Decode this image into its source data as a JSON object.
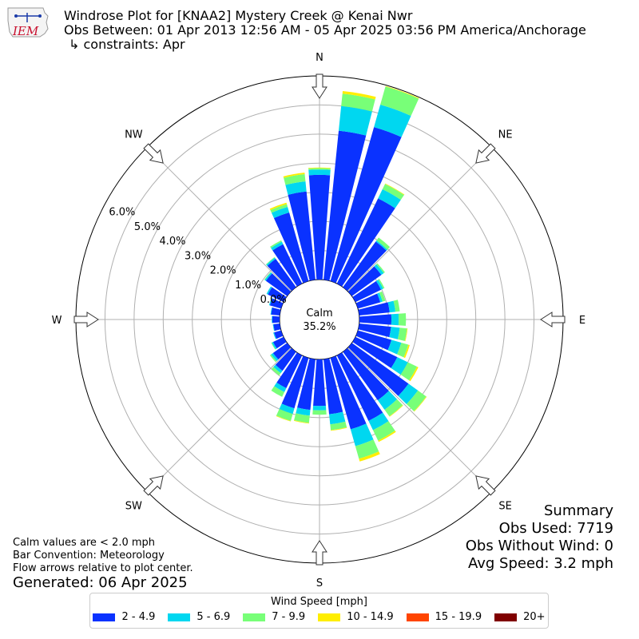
{
  "logo": {
    "text": "IEM",
    "color": "#c8102e"
  },
  "header": {
    "line1": "Windrose Plot for [KNAA2] Mystery Creek @ Kenai Nwr",
    "line2": "Obs Between: 01 Apr 2013 12:56 AM - 05 Apr 2025 03:56 PM America/Anchorage",
    "line3": "↳ constraints: Apr"
  },
  "summary": {
    "title": "Summary",
    "obs_used": "Obs Used: 7719",
    "obs_without_wind": "Obs Without Wind: 0",
    "avg_speed": "Avg Speed: 3.2 mph"
  },
  "notes": {
    "calm": "Calm values are < 2.0 mph",
    "convention": "Bar Convention: Meteorology",
    "flow": "Flow arrows relative to plot center."
  },
  "generated": "Generated: 06 Apr 2025",
  "chart_data": {
    "type": "windrose",
    "title": "Windrose Plot for [KNAA2] Mystery Creek @ Kenai Nwr",
    "calm_label": "Calm",
    "calm_value": "35.2%",
    "directions": [
      "N",
      "NE",
      "E",
      "SE",
      "S",
      "SW",
      "W",
      "NW"
    ],
    "radial_ticks": [
      "0.0%",
      "1.0%",
      "2.0%",
      "3.0%",
      "4.0%",
      "5.0%",
      "6.0%"
    ],
    "radial_max": 7.0,
    "legend_title": "Wind Speed [mph]",
    "series": [
      {
        "name": "2 - 4.9",
        "color": "#0a32ff"
      },
      {
        "name": "5 - 6.9",
        "color": "#00d7f0"
      },
      {
        "name": "7 - 9.9",
        "color": "#78ff78"
      },
      {
        "name": "10 - 14.9",
        "color": "#ffee00"
      },
      {
        "name": "15 - 19.9",
        "color": "#ff4500"
      },
      {
        "name": "20+",
        "color": "#800000"
      }
    ],
    "bin_width_deg": 10,
    "bins": [
      {
        "dir": 0,
        "values": [
          3.6,
          0.18,
          0.05,
          0.02,
          0,
          0
        ]
      },
      {
        "dir": 10,
        "values": [
          5.15,
          0.85,
          0.43,
          0.09,
          0,
          0
        ]
      },
      {
        "dir": 20,
        "values": [
          5.5,
          0.8,
          0.65,
          0.02,
          0,
          0
        ]
      },
      {
        "dir": 30,
        "values": [
          3.25,
          0.35,
          0.2,
          0.02,
          0,
          0
        ]
      },
      {
        "dir": 40,
        "values": [
          1.93,
          0.05,
          0.12,
          0,
          0,
          0
        ]
      },
      {
        "dir": 50,
        "values": [
          1.25,
          0.1,
          0.05,
          0,
          0,
          0
        ]
      },
      {
        "dir": 60,
        "values": [
          0.98,
          0.08,
          0.05,
          0,
          0,
          0
        ]
      },
      {
        "dir": 70,
        "values": [
          0.8,
          0.08,
          0.1,
          0,
          0,
          0
        ]
      },
      {
        "dir": 80,
        "values": [
          1.05,
          0.2,
          0.15,
          0,
          0,
          0
        ]
      },
      {
        "dir": 90,
        "values": [
          1.1,
          0.25,
          0.25,
          0,
          0,
          0
        ]
      },
      {
        "dir": 100,
        "values": [
          1.1,
          0.3,
          0.25,
          0.02,
          0,
          0
        ]
      },
      {
        "dir": 110,
        "values": [
          1.2,
          0.35,
          0.25,
          0.05,
          0,
          0
        ]
      },
      {
        "dir": 120,
        "values": [
          1.6,
          0.4,
          0.35,
          0.05,
          0,
          0
        ]
      },
      {
        "dir": 130,
        "values": [
          2.4,
          0.4,
          0.35,
          0.02,
          0,
          0
        ]
      },
      {
        "dir": 140,
        "values": [
          2.05,
          0.4,
          0.28,
          0.02,
          0,
          0
        ]
      },
      {
        "dir": 150,
        "values": [
          2.5,
          0.35,
          0.4,
          0.05,
          0,
          0
        ]
      },
      {
        "dir": 160,
        "values": [
          2.55,
          0.6,
          0.45,
          0.1,
          0,
          0
        ]
      },
      {
        "dir": 170,
        "values": [
          1.9,
          0.35,
          0.2,
          0.02,
          0,
          0
        ]
      },
      {
        "dir": 180,
        "values": [
          1.6,
          0.15,
          0.15,
          0,
          0,
          0
        ]
      },
      {
        "dir": 190,
        "values": [
          1.75,
          0.2,
          0.25,
          0.02,
          0,
          0
        ]
      },
      {
        "dir": 200,
        "values": [
          1.8,
          0.2,
          0.25,
          0.02,
          0,
          0
        ]
      },
      {
        "dir": 210,
        "values": [
          1.25,
          0.15,
          0.18,
          0,
          0,
          0
        ]
      },
      {
        "dir": 220,
        "values": [
          0.8,
          0.1,
          0.1,
          0,
          0,
          0
        ]
      },
      {
        "dir": 230,
        "values": [
          0.6,
          0.08,
          0.05,
          0,
          0,
          0
        ]
      },
      {
        "dir": 240,
        "values": [
          0.4,
          0.05,
          0.02,
          0,
          0,
          0
        ]
      },
      {
        "dir": 250,
        "values": [
          0.25,
          0.03,
          0,
          0,
          0,
          0
        ]
      },
      {
        "dir": 260,
        "values": [
          0.22,
          0.02,
          0,
          0,
          0,
          0
        ]
      },
      {
        "dir": 270,
        "values": [
          0.25,
          0.02,
          0,
          0,
          0,
          0
        ]
      },
      {
        "dir": 280,
        "values": [
          0.3,
          0.02,
          0,
          0,
          0,
          0
        ]
      },
      {
        "dir": 290,
        "values": [
          0.4,
          0.03,
          0,
          0,
          0,
          0
        ]
      },
      {
        "dir": 300,
        "values": [
          0.6,
          0.05,
          0,
          0,
          0,
          0
        ]
      },
      {
        "dir": 310,
        "values": [
          0.9,
          0.05,
          0.02,
          0,
          0,
          0
        ]
      },
      {
        "dir": 320,
        "values": [
          1.2,
          0.05,
          0.02,
          0,
          0,
          0
        ]
      },
      {
        "dir": 330,
        "values": [
          1.5,
          0.1,
          0.05,
          0,
          0,
          0
        ]
      },
      {
        "dir": 340,
        "values": [
          2.45,
          0.2,
          0.1,
          0.05,
          0,
          0
        ]
      },
      {
        "dir": 350,
        "values": [
          3.05,
          0.35,
          0.25,
          0.05,
          0,
          0
        ]
      }
    ]
  }
}
